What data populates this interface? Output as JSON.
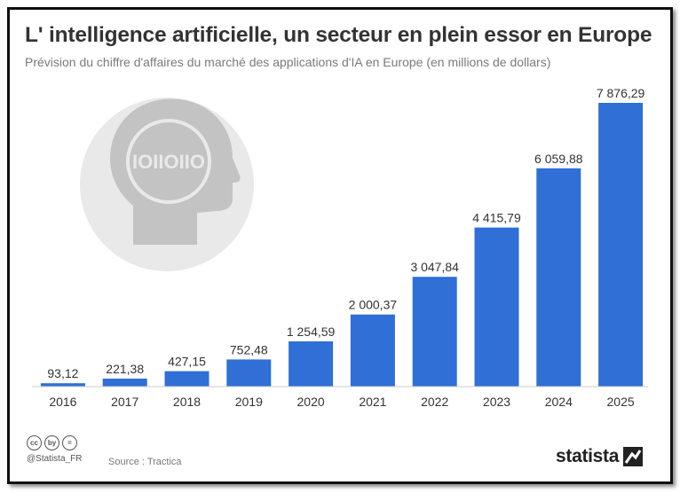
{
  "header": {
    "title": "L' intelligence artificielle, un secteur en plein essor en Europe",
    "subtitle": "Prévision du chiffre d'affaires du marché des applications d'IA en Europe (en millions de dollars)"
  },
  "illustration": {
    "binary_text": "IOIIOIIO",
    "icon": "head-binary-icon"
  },
  "footer": {
    "license_icons": [
      "cc",
      "by",
      "="
    ],
    "handle": "@Statista_FR",
    "source": "Source : Tractica",
    "brand": "statista"
  },
  "colors": {
    "bar": "#2f6fd6",
    "text": "#333333",
    "axis": "#cccccc",
    "icon_bg": "#e9e9e9",
    "icon_fg": "#c3c3c3"
  },
  "chart_data": {
    "type": "bar",
    "categories": [
      "2016",
      "2017",
      "2018",
      "2019",
      "2020",
      "2021",
      "2022",
      "2023",
      "2024",
      "2025"
    ],
    "values": [
      93.12,
      221.38,
      427.15,
      752.48,
      1254.59,
      2000.37,
      3047.84,
      4415.79,
      6059.88,
      7876.29
    ],
    "labels": [
      "93,12",
      "221,38",
      "427,15",
      "752,48",
      "1 254,59",
      "2 000,37",
      "3 047,84",
      "4 415,79",
      "6 059,88",
      "7 876,29"
    ],
    "title": "L' intelligence artificielle, un secteur en plein essor en Europe",
    "subtitle": "Prévision du chiffre d'affaires du marché des applications d'IA en Europe (en millions de dollars)",
    "ylim": [
      0,
      7876.29
    ],
    "grid": false,
    "legend": "none"
  }
}
